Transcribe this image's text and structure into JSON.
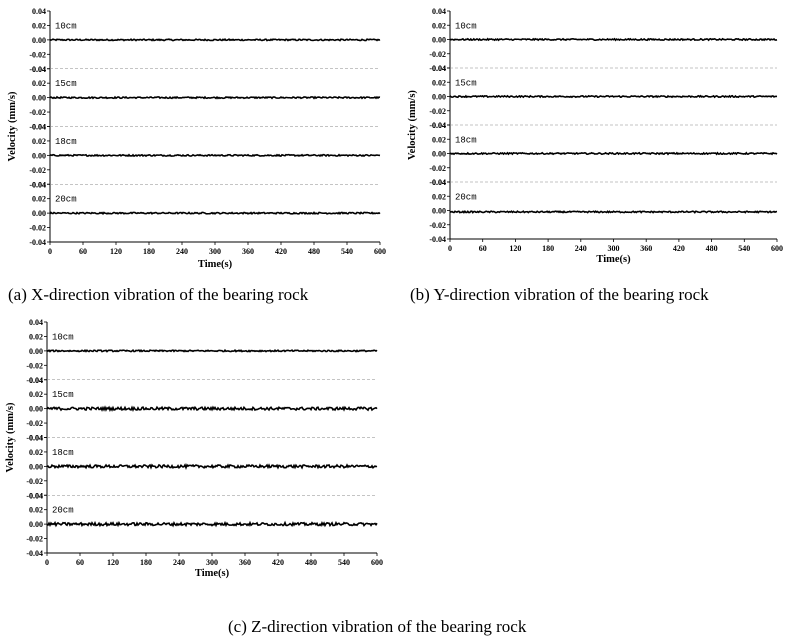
{
  "chart_data": [
    {
      "type": "line",
      "caption": "(a) X-direction vibration of the bearing rock",
      "xlabel": "Time(s)",
      "ylabel": "Velocity (mm/s)",
      "xlim": [
        0,
        600
      ],
      "ylim": [
        -0.04,
        0.04
      ],
      "x_ticks": [
        "0",
        "60",
        "120",
        "180",
        "240",
        "300",
        "360",
        "420",
        "480",
        "540",
        "600"
      ],
      "y_ticks": [
        "0.04",
        "0.02",
        "0.00",
        "-0.02",
        "-0.04"
      ],
      "subplots": [
        {
          "name": "10cm",
          "baseline": 0.0,
          "amplitude": 0.001
        },
        {
          "name": "15cm",
          "baseline": 0.0,
          "amplitude": 0.001
        },
        {
          "name": "18cm",
          "baseline": 0.0,
          "amplitude": 0.001
        },
        {
          "name": "20cm",
          "baseline": 0.0,
          "amplitude": 0.001
        }
      ]
    },
    {
      "type": "line",
      "caption": "(b) Y-direction vibration of the bearing rock",
      "xlabel": "Time(s)",
      "ylabel": "Velocity (mm/s)",
      "xlim": [
        0,
        600
      ],
      "ylim": [
        -0.04,
        0.04
      ],
      "x_ticks": [
        "0",
        "60",
        "120",
        "180",
        "240",
        "300",
        "360",
        "420",
        "480",
        "540",
        "600"
      ],
      "y_ticks": [
        "0.04",
        "0.02",
        "0.00",
        "-0.02",
        "-0.04"
      ],
      "subplots": [
        {
          "name": "10cm",
          "baseline": 0.0,
          "amplitude": 0.001
        },
        {
          "name": "15cm",
          "baseline": 0.0,
          "amplitude": 0.001
        },
        {
          "name": "18cm",
          "baseline": 0.0,
          "amplitude": 0.001
        },
        {
          "name": "20cm",
          "baseline": -0.002,
          "amplitude": 0.001
        }
      ]
    },
    {
      "type": "line",
      "caption": "(c) Z-direction vibration of the bearing rock",
      "xlabel": "Time(s)",
      "ylabel": "Velocity (mm/s)",
      "xlim": [
        0,
        600
      ],
      "ylim": [
        -0.04,
        0.04
      ],
      "x_ticks": [
        "0",
        "60",
        "120",
        "180",
        "240",
        "300",
        "360",
        "420",
        "480",
        "540",
        "600"
      ],
      "y_ticks": [
        "0.04",
        "0.02",
        "0.00",
        "-0.02",
        "-0.04"
      ],
      "subplots": [
        {
          "name": "10cm",
          "baseline": 0.0,
          "amplitude": 0.001
        },
        {
          "name": "15cm",
          "baseline": 0.0,
          "amplitude": 0.002
        },
        {
          "name": "18cm",
          "baseline": 0.0,
          "amplitude": 0.002
        },
        {
          "name": "20cm",
          "baseline": 0.0,
          "amplitude": 0.002
        }
      ]
    }
  ]
}
